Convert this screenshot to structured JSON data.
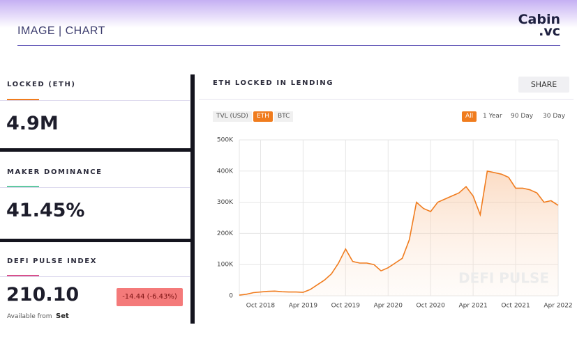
{
  "header": {
    "title": "IMAGE | CHART",
    "logo": "Cabin",
    "logo_suffix": ".vc"
  },
  "stats": [
    {
      "label": "LOCKED (ETH)",
      "value": "4.9M"
    },
    {
      "label": "MAKER DOMINANCE",
      "value": "41.45%"
    },
    {
      "label": "DEFI PULSE INDEX",
      "value": "210.10",
      "change": "-14.44  (-6.43%)",
      "source": "Available from",
      "source_name": "Set"
    }
  ],
  "chart_panel": {
    "share": "SHARE",
    "units": [
      "TVL (USD)",
      "ETH",
      "BTC"
    ],
    "active_unit": 1,
    "ranges": [
      "All",
      "1 Year",
      "90 Day",
      "30 Day"
    ],
    "active_range": 0,
    "watermark": "DEFI PULSE"
  },
  "chart_data": {
    "type": "line",
    "title": "ETH LOCKED IN LENDING",
    "color": "#f07c1e",
    "area": true,
    "grid": true,
    "x": [
      "2018-07",
      "2018-08",
      "2018-09",
      "2018-10",
      "2018-11",
      "2018-12",
      "2019-01",
      "2019-02",
      "2019-03",
      "2019-04",
      "2019-05",
      "2019-06",
      "2019-07",
      "2019-08",
      "2019-09",
      "2019-10",
      "2019-11",
      "2019-12",
      "2020-01",
      "2020-02",
      "2020-03",
      "2020-04",
      "2020-05",
      "2020-06",
      "2020-07",
      "2020-08",
      "2020-09",
      "2020-10",
      "2020-11",
      "2020-12",
      "2021-01",
      "2021-02",
      "2021-03",
      "2021-04",
      "2021-05",
      "2021-06",
      "2021-07",
      "2021-08",
      "2021-09",
      "2021-10",
      "2021-11",
      "2021-12",
      "2022-01",
      "2022-02",
      "2022-03",
      "2022-04"
    ],
    "values": [
      2000,
      5000,
      10000,
      12000,
      14000,
      15000,
      13000,
      12000,
      12000,
      11000,
      20000,
      35000,
      50000,
      70000,
      105000,
      150000,
      110000,
      105000,
      105000,
      100000,
      80000,
      90000,
      105000,
      120000,
      180000,
      300000,
      280000,
      270000,
      300000,
      310000,
      320000,
      330000,
      350000,
      320000,
      260000,
      400000,
      395000,
      390000,
      380000,
      345000,
      345000,
      340000,
      330000,
      300000,
      305000,
      290000
    ],
    "xlim": [
      "2018-07",
      "2022-04"
    ],
    "xticks": [
      {
        "value": "2018-10",
        "label": "Oct 2018"
      },
      {
        "value": "2019-04",
        "label": "Apr 2019"
      },
      {
        "value": "2019-10",
        "label": "Oct 2019"
      },
      {
        "value": "2020-04",
        "label": "Apr 2020"
      },
      {
        "value": "2020-10",
        "label": "Oct 2020"
      },
      {
        "value": "2021-04",
        "label": "Apr 2021"
      },
      {
        "value": "2021-10",
        "label": "Oct 2021"
      },
      {
        "value": "2022-04",
        "label": "Apr 2022"
      }
    ],
    "ylim": [
      0,
      500000
    ],
    "yticks": [
      0,
      {
        "value": 100000,
        "label": "100K"
      },
      {
        "value": 200000,
        "label": "200K"
      },
      {
        "value": 300000,
        "label": "300K"
      },
      {
        "value": 400000,
        "label": "400K"
      },
      {
        "value": 500000,
        "label": "500K"
      }
    ]
  }
}
